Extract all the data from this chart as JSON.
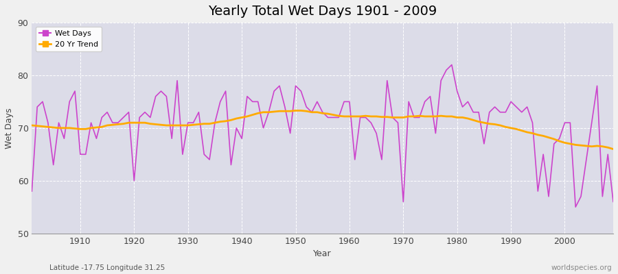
{
  "title": "Yearly Total Wet Days 1901 - 2009",
  "xlabel": "Year",
  "ylabel": "Wet Days",
  "subtitle_left": "Latitude -17.75 Longitude 31.25",
  "subtitle_right": "worldspecies.org",
  "ylim": [
    50,
    90
  ],
  "yticks": [
    50,
    60,
    70,
    80,
    90
  ],
  "xticks": [
    1910,
    1920,
    1930,
    1940,
    1950,
    1960,
    1970,
    1980,
    1990,
    2000
  ],
  "line_color": "#cc44cc",
  "trend_color": "#ffaa00",
  "fig_bg_color": "#f0f0f0",
  "plot_bg_color": "#dcdce8",
  "years": [
    1901,
    1902,
    1903,
    1904,
    1905,
    1906,
    1907,
    1908,
    1909,
    1910,
    1911,
    1912,
    1913,
    1914,
    1915,
    1916,
    1917,
    1918,
    1919,
    1920,
    1921,
    1922,
    1923,
    1924,
    1925,
    1926,
    1927,
    1928,
    1929,
    1930,
    1931,
    1932,
    1933,
    1934,
    1935,
    1936,
    1937,
    1938,
    1939,
    1940,
    1941,
    1942,
    1943,
    1944,
    1945,
    1946,
    1947,
    1948,
    1949,
    1950,
    1951,
    1952,
    1953,
    1954,
    1955,
    1956,
    1957,
    1958,
    1959,
    1960,
    1961,
    1962,
    1963,
    1964,
    1965,
    1966,
    1967,
    1968,
    1969,
    1970,
    1971,
    1972,
    1973,
    1974,
    1975,
    1976,
    1977,
    1978,
    1979,
    1980,
    1981,
    1982,
    1983,
    1984,
    1985,
    1986,
    1987,
    1988,
    1989,
    1990,
    1991,
    1992,
    1993,
    1994,
    1995,
    1996,
    1997,
    1998,
    1999,
    2000,
    2001,
    2002,
    2003,
    2004,
    2005,
    2006,
    2007,
    2008,
    2009
  ],
  "wet_days": [
    58,
    74,
    75,
    71,
    63,
    71,
    68,
    75,
    77,
    65,
    65,
    71,
    68,
    72,
    73,
    71,
    71,
    72,
    73,
    60,
    72,
    73,
    72,
    76,
    77,
    76,
    68,
    79,
    65,
    71,
    71,
    73,
    65,
    64,
    71,
    75,
    77,
    63,
    70,
    68,
    76,
    75,
    75,
    70,
    73,
    77,
    78,
    74,
    69,
    78,
    77,
    74,
    73,
    75,
    73,
    72,
    72,
    72,
    75,
    75,
    64,
    72,
    72,
    71,
    69,
    64,
    79,
    72,
    71,
    56,
    75,
    72,
    72,
    75,
    76,
    69,
    79,
    81,
    82,
    77,
    74,
    75,
    73,
    73,
    67,
    73,
    74,
    73,
    73,
    75,
    74,
    73,
    74,
    71,
    58,
    65,
    57,
    67,
    68,
    71,
    71,
    55,
    57,
    64,
    71,
    78,
    57,
    65,
    56
  ],
  "trend": [
    70.5,
    70.4,
    70.3,
    70.2,
    70.1,
    70.0,
    70.0,
    70.0,
    69.9,
    69.8,
    69.8,
    70.0,
    70.1,
    70.2,
    70.5,
    70.6,
    70.7,
    70.8,
    71.0,
    71.0,
    71.0,
    71.0,
    70.8,
    70.7,
    70.6,
    70.5,
    70.5,
    70.5,
    70.5,
    70.5,
    70.6,
    70.7,
    70.8,
    70.8,
    71.0,
    71.2,
    71.3,
    71.5,
    71.8,
    72.0,
    72.2,
    72.5,
    72.8,
    73.0,
    73.0,
    73.1,
    73.2,
    73.2,
    73.2,
    73.3,
    73.3,
    73.2,
    73.0,
    73.0,
    72.8,
    72.7,
    72.5,
    72.3,
    72.2,
    72.2,
    72.2,
    72.2,
    72.3,
    72.2,
    72.2,
    72.1,
    72.1,
    72.0,
    72.0,
    72.0,
    72.2,
    72.2,
    72.3,
    72.2,
    72.2,
    72.2,
    72.3,
    72.2,
    72.2,
    72.0,
    72.0,
    71.8,
    71.5,
    71.2,
    71.0,
    70.8,
    70.7,
    70.5,
    70.2,
    70.0,
    69.8,
    69.5,
    69.2,
    69.0,
    68.7,
    68.5,
    68.2,
    67.9,
    67.5,
    67.2,
    67.0,
    66.8,
    66.7,
    66.6,
    66.5,
    66.6,
    66.5,
    66.3,
    66.0
  ]
}
